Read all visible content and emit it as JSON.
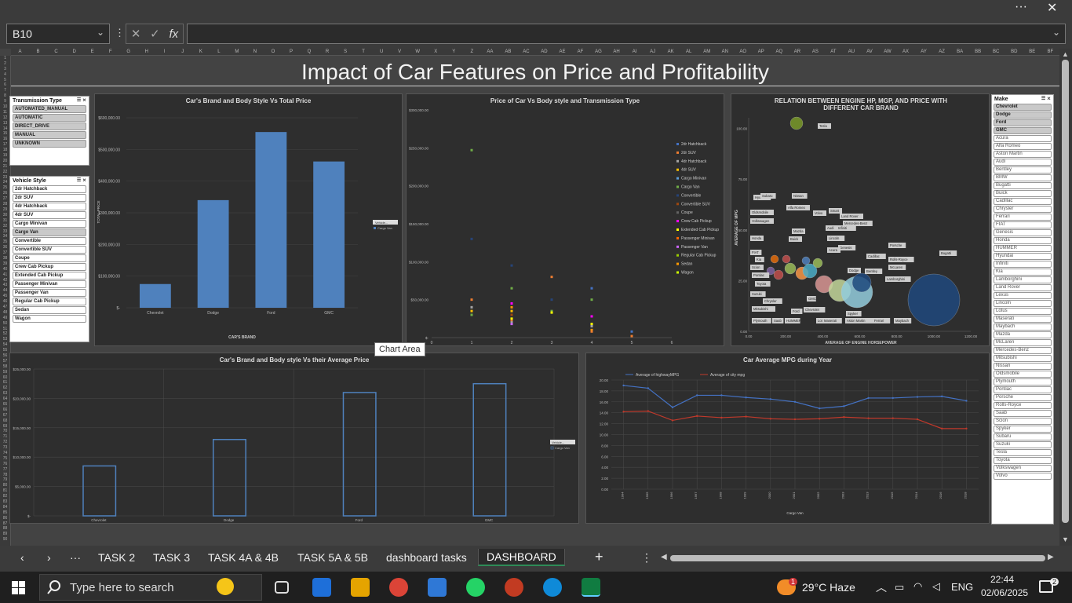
{
  "window": {
    "more": "···",
    "close": "✕"
  },
  "formula_bar": {
    "name_box": "B10",
    "cancel": "✕",
    "enter": "✓",
    "fx": "fx",
    "value": ""
  },
  "columns": [
    "A",
    "B",
    "C",
    "D",
    "E",
    "F",
    "G",
    "H",
    "I",
    "J",
    "K",
    "L",
    "M",
    "N",
    "O",
    "P",
    "Q",
    "R",
    "S",
    "T",
    "U",
    "V",
    "W",
    "X",
    "Y",
    "Z",
    "AA",
    "AB",
    "AC",
    "AD",
    "AE",
    "AF",
    "AG",
    "AH",
    "AI",
    "AJ",
    "AK",
    "AL",
    "AM",
    "AN",
    "AO",
    "AP",
    "AQ",
    "AR",
    "AS",
    "AT",
    "AU",
    "AV",
    "AW",
    "AX",
    "AY",
    "AZ",
    "BA",
    "BB",
    "BC",
    "BD",
    "BE",
    "BF"
  ],
  "dashboard_title": "Impact of Car Features on Price and Profitability",
  "slicer_transmission": {
    "title": "Transmission Type",
    "items": [
      {
        "label": "AUTOMATED_MANUAL",
        "sel": true
      },
      {
        "label": "AUTOMATIC",
        "sel": true
      },
      {
        "label": "DIRECT_DRIVE",
        "sel": true
      },
      {
        "label": "MANUAL",
        "sel": true
      },
      {
        "label": "UNKNOWN",
        "sel": true
      }
    ]
  },
  "slicer_style": {
    "title": "Vehicle Style",
    "items": [
      {
        "label": "2dr Hatchback",
        "sel": false
      },
      {
        "label": "2dr SUV",
        "sel": false
      },
      {
        "label": "4dr Hatchback",
        "sel": false
      },
      {
        "label": "4dr SUV",
        "sel": false
      },
      {
        "label": "Cargo Minivan",
        "sel": false
      },
      {
        "label": "Cargo Van",
        "sel": true
      },
      {
        "label": "Convertible",
        "sel": false
      },
      {
        "label": "Convertible SUV",
        "sel": false
      },
      {
        "label": "Coupe",
        "sel": false
      },
      {
        "label": "Crew Cab Pickup",
        "sel": false
      },
      {
        "label": "Extended Cab Pickup",
        "sel": false
      },
      {
        "label": "Passenger Minivan",
        "sel": false
      },
      {
        "label": "Passenger Van",
        "sel": false
      },
      {
        "label": "Regular Cab Pickup",
        "sel": false
      },
      {
        "label": "Sedan",
        "sel": false
      },
      {
        "label": "Wagon",
        "sel": false
      }
    ]
  },
  "slicer_make": {
    "title": "Make",
    "items": [
      {
        "label": "Chevrolet",
        "sel": true
      },
      {
        "label": "Dodge",
        "sel": true
      },
      {
        "label": "Ford",
        "sel": true
      },
      {
        "label": "GMC",
        "sel": true
      },
      {
        "label": "Acura",
        "sel": false
      },
      {
        "label": "Alfa Romeo",
        "sel": false
      },
      {
        "label": "Aston Martin",
        "sel": false
      },
      {
        "label": "Audi",
        "sel": false
      },
      {
        "label": "Bentley",
        "sel": false
      },
      {
        "label": "BMW",
        "sel": false
      },
      {
        "label": "Bugatti",
        "sel": false
      },
      {
        "label": "Buick",
        "sel": false
      },
      {
        "label": "Cadillac",
        "sel": false
      },
      {
        "label": "Chrysler",
        "sel": false
      },
      {
        "label": "Ferrari",
        "sel": false
      },
      {
        "label": "FIAT",
        "sel": false
      },
      {
        "label": "Genesis",
        "sel": false
      },
      {
        "label": "Honda",
        "sel": false
      },
      {
        "label": "HUMMER",
        "sel": false
      },
      {
        "label": "Hyundai",
        "sel": false
      },
      {
        "label": "Infiniti",
        "sel": false
      },
      {
        "label": "Kia",
        "sel": false
      },
      {
        "label": "Lamborghini",
        "sel": false
      },
      {
        "label": "Land Rover",
        "sel": false
      },
      {
        "label": "Lexus",
        "sel": false
      },
      {
        "label": "Lincoln",
        "sel": false
      },
      {
        "label": "Lotus",
        "sel": false
      },
      {
        "label": "Maserati",
        "sel": false
      },
      {
        "label": "Maybach",
        "sel": false
      },
      {
        "label": "Mazda",
        "sel": false
      },
      {
        "label": "McLaren",
        "sel": false
      },
      {
        "label": "Mercedes-Benz",
        "sel": false
      },
      {
        "label": "Mitsubishi",
        "sel": false
      },
      {
        "label": "Nissan",
        "sel": false
      },
      {
        "label": "Oldsmobile",
        "sel": false
      },
      {
        "label": "Plymouth",
        "sel": false
      },
      {
        "label": "Pontiac",
        "sel": false
      },
      {
        "label": "Porsche",
        "sel": false
      },
      {
        "label": "Rolls-Royce",
        "sel": false
      },
      {
        "label": "Saab",
        "sel": false
      },
      {
        "label": "Scion",
        "sel": false
      },
      {
        "label": "Spyker",
        "sel": false
      },
      {
        "label": "Subaru",
        "sel": false
      },
      {
        "label": "Suzuki",
        "sel": false
      },
      {
        "label": "Tesla",
        "sel": false
      },
      {
        "label": "Toyota",
        "sel": false
      },
      {
        "label": "Volkswagen",
        "sel": false
      },
      {
        "label": "Volvo",
        "sel": false
      }
    ]
  },
  "chart_data": [
    {
      "id": "brand_total",
      "type": "bar",
      "title": "Car's Brand and Body Style Vs Total Price",
      "xlabel": "CAR'S BRAND",
      "ylabel": "TOTAL PRICE",
      "categories": [
        "Chevrolet",
        "Dodge",
        "Ford",
        "GMC"
      ],
      "values": [
        75000,
        340000,
        555000,
        462000
      ],
      "ylim": [
        0,
        600000
      ],
      "yticks": [
        "$-",
        "$100,000.00",
        "$200,000.00",
        "$300,000.00",
        "$400,000.00",
        "$500,000.00",
        "$600,000.00"
      ],
      "legend": {
        "title": "Vehicle...",
        "items": [
          "Cargo Van"
        ]
      },
      "color": "#4f81bd"
    },
    {
      "id": "price_scatter",
      "type": "scatter",
      "title": "Price of Car Vs Body style and Transmission Type",
      "xlim": [
        0,
        6
      ],
      "ylim": [
        0,
        300000
      ],
      "xticks": [
        "0",
        "1",
        "2",
        "3",
        "4",
        "5",
        "6"
      ],
      "yticks": [
        "$-",
        "$50,000.00",
        "$100,000.00",
        "$150,000.00",
        "$200,000.00",
        "$250,000.00",
        "$300,000.00"
      ],
      "legend": [
        "2dr Hatchback",
        "2dr SUV",
        "4dr Hatchback",
        "4dr SUV",
        "Cargo Minivan",
        "Cargo Van",
        "Convertible",
        "Convertible SUV",
        "Coupe",
        "Crew Cab Pickup",
        "Extended Cab Pickup",
        "Passenger Minivan",
        "Passenger Van",
        "Regular Cab Pickup",
        "Sedan",
        "Wagon"
      ],
      "legend_colors": [
        "#4472c4",
        "#ed7d31",
        "#a5a5a5",
        "#ffc000",
        "#5b9bd5",
        "#70ad47",
        "#264478",
        "#9e480e",
        "#636363",
        "#ff00ff",
        "#ffff00",
        "#ff6600",
        "#cc66ff",
        "#99cc00",
        "#ff9900",
        "#ccff00"
      ],
      "points": [
        {
          "x": 1,
          "y": 247000,
          "c": "#70ad47"
        },
        {
          "x": 1,
          "y": 130000,
          "c": "#264478"
        },
        {
          "x": 1,
          "y": 50000,
          "c": "#ed7d31"
        },
        {
          "x": 1,
          "y": 35000,
          "c": "#ffc000"
        },
        {
          "x": 1,
          "y": 30000,
          "c": "#70ad47"
        },
        {
          "x": 1,
          "y": 40000,
          "c": "#a5a5a5"
        },
        {
          "x": 2,
          "y": 95000,
          "c": "#264478"
        },
        {
          "x": 2,
          "y": 65000,
          "c": "#70ad47"
        },
        {
          "x": 2,
          "y": 45000,
          "c": "#ff00ff"
        },
        {
          "x": 2,
          "y": 40000,
          "c": "#ff9900"
        },
        {
          "x": 2,
          "y": 35000,
          "c": "#ffc000"
        },
        {
          "x": 2,
          "y": 30000,
          "c": "#9e480e"
        },
        {
          "x": 2,
          "y": 25000,
          "c": "#ffff00"
        },
        {
          "x": 2,
          "y": 22000,
          "c": "#ed7d31"
        },
        {
          "x": 2,
          "y": 20000,
          "c": "#a5a5a5"
        },
        {
          "x": 2,
          "y": 18000,
          "c": "#cc66ff"
        },
        {
          "x": 3,
          "y": 80000,
          "c": "#ed7d31"
        },
        {
          "x": 3,
          "y": 50000,
          "c": "#264478"
        },
        {
          "x": 3,
          "y": 35000,
          "c": "#70ad47"
        },
        {
          "x": 3,
          "y": 33000,
          "c": "#ffff00"
        },
        {
          "x": 4,
          "y": 65000,
          "c": "#4472c4"
        },
        {
          "x": 4,
          "y": 50000,
          "c": "#70ad47"
        },
        {
          "x": 4,
          "y": 28000,
          "c": "#ff00ff"
        },
        {
          "x": 4,
          "y": 18000,
          "c": "#ffff00"
        },
        {
          "x": 4,
          "y": 15000,
          "c": "#a5a5a5"
        },
        {
          "x": 4,
          "y": 10000,
          "c": "#ff9900"
        },
        {
          "x": 4,
          "y": 8000,
          "c": "#ed7d31"
        },
        {
          "x": 5,
          "y": 8000,
          "c": "#4472c4"
        },
        {
          "x": 5,
          "y": 2000,
          "c": "#ed7d31"
        }
      ]
    },
    {
      "id": "bubble",
      "type": "scatter",
      "title": "RELATION BETWEEN ENGINE HP, MGP, AND PRICE WITH DIFFERENT CAR BRAND",
      "xlabel": "AVERAGE OF ENGINE HORSEPOWER",
      "ylabel": "AVERAGE OF MPG",
      "xlim": [
        0,
        1000
      ],
      "ylim": [
        0,
        100
      ],
      "xticks": [
        "0.00",
        "200.00",
        "400.00",
        "600.00",
        "800.00",
        "1000.00",
        "1200.00"
      ],
      "yticks": [
        "0.00",
        "25.00",
        "50.00",
        "75.00",
        "100.00"
      ],
      "labels": [
        "Tesla",
        "Hyundai",
        "Subaru",
        "Nissan",
        "Oldsmobile",
        "Alfa Romeo",
        "Volvo",
        "Smart",
        "Volkswagen",
        "Land Rover",
        "Mercedes-Benz",
        "Mazda",
        "Audi",
        "Infiniti",
        "Buick",
        "Lincoln",
        "Honda",
        "Genesis",
        "Porsche",
        "Rolls-Royce",
        "FIAT",
        "Acura",
        "Kia",
        "Cadillac",
        "Bentley",
        "Bugatti",
        "Scion",
        "Dodge",
        "Pontiac",
        "McLaren",
        "Toyota",
        "Lamborghini",
        "Suzuki",
        "Chrysler",
        "Mitsubishi",
        "GMC",
        "Chevrolet",
        "Plymouth",
        "Saab",
        "HUMMER",
        "Ford",
        "Lotus",
        "Maserati",
        "Aston Martin",
        "Spyker",
        "Ferrari",
        "Maybach"
      ]
    },
    {
      "id": "brand_avg",
      "type": "bar",
      "title": "Car's Brand and Body style Vs their Average Price",
      "categories": [
        "Chevrolet",
        "Dodge",
        "Ford",
        "GMC"
      ],
      "values": [
        8500,
        13000,
        21000,
        22500
      ],
      "ylim": [
        0,
        25000
      ],
      "yticks": [
        "$-",
        "$5,000.00",
        "$10,000.00",
        "$15,000.00",
        "$20,000.00",
        "$25,000.00"
      ],
      "legend": {
        "title": "Vehicle...",
        "items": [
          "Cargo Van"
        ]
      }
    },
    {
      "id": "mpg_year",
      "type": "line",
      "title": "Car Average MPG during Year",
      "xlabel": "Cargo Van",
      "categories": [
        "1994",
        "1995",
        "1996",
        "1997",
        "1998",
        "1999",
        "2000",
        "2001",
        "2002",
        "2003",
        "2013",
        "2015",
        "2014",
        "2016",
        "2018"
      ],
      "series": [
        {
          "name": "Average of highwayMPG",
          "color": "#4472c4",
          "values": [
            19,
            18.5,
            15,
            17.2,
            17.2,
            16.8,
            16.5,
            16,
            14.8,
            15.2,
            16.7,
            16.7,
            16.9,
            17,
            16.2
          ]
        },
        {
          "name": "Average of city mpg",
          "color": "#c0392b",
          "values": [
            14.2,
            14.3,
            12.6,
            13.4,
            13.1,
            13.3,
            12.9,
            12.8,
            12.9,
            13.2,
            13,
            13,
            12.8,
            11.1,
            11.1
          ]
        }
      ],
      "ylim": [
        0,
        20
      ],
      "yticks": [
        "0.00",
        "2.00",
        "4.00",
        "6.00",
        "8.00",
        "10.00",
        "12.00",
        "14.00",
        "16.00",
        "18.00",
        "20.00"
      ]
    }
  ],
  "tooltip": "Chart Area",
  "tabs": {
    "task2": "TASK 2",
    "task3": "TASK 3",
    "task4": "TASK 4A & 4B",
    "task5": "TASK 5A & 5B",
    "tasks": "dashboard tasks",
    "dash": "DASHBOARD",
    "add": "+",
    "more": "···"
  },
  "taskbar": {
    "search": "Type here to search",
    "weather": "29°C Haze",
    "lang": "ENG",
    "time": "22:44",
    "date": "02/06/2025",
    "badge": "1",
    "notif": "2"
  }
}
